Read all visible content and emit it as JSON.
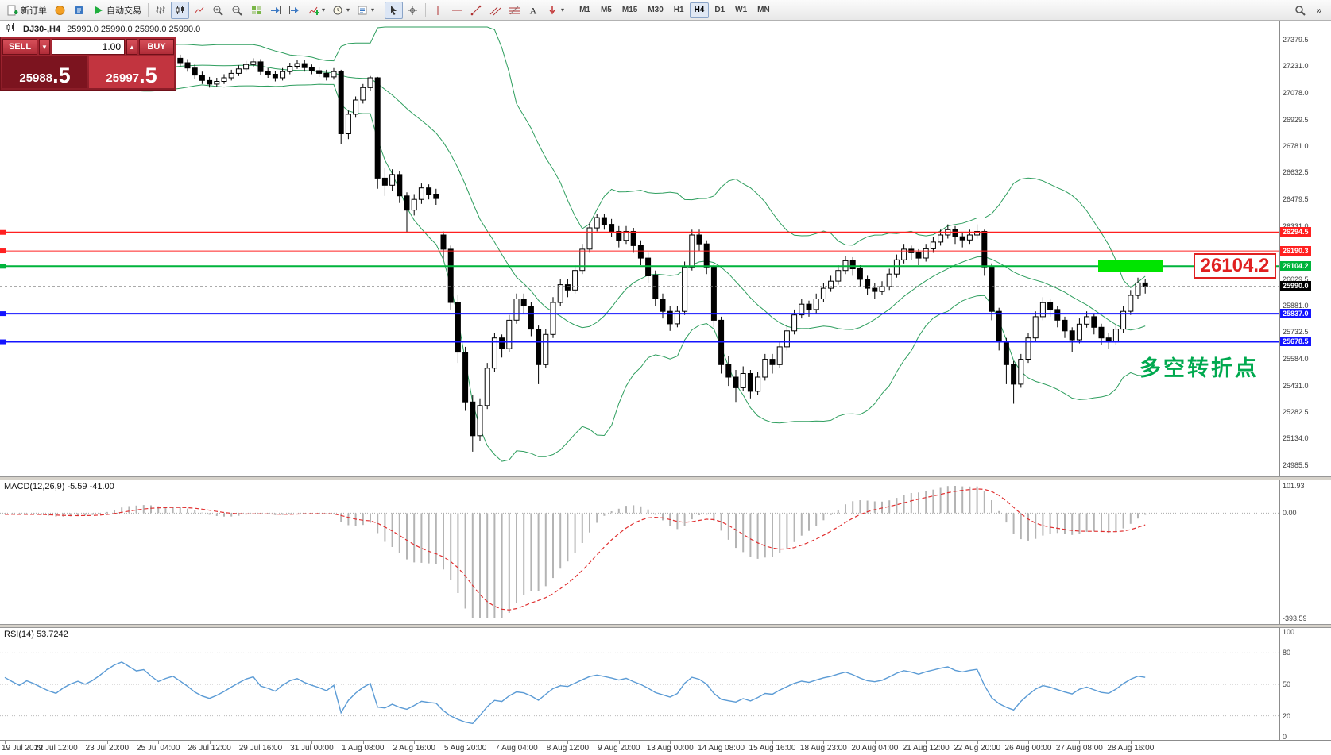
{
  "toolbar": {
    "new_order": "新订单",
    "auto_trading": "自动交易",
    "timeframes": [
      "M1",
      "M5",
      "M15",
      "M30",
      "H1",
      "H4",
      "D1",
      "W1",
      "MN"
    ],
    "active_timeframe": "H4"
  },
  "symbol_bar": {
    "title": "DJ30-,H4",
    "ohlc": "25990.0 25990.0 25990.0 25990.0"
  },
  "trade_panel": {
    "sell_label": "SELL",
    "buy_label": "BUY",
    "volume": "1.00",
    "sell_price": "25988.5",
    "sell_price_main": "25988",
    "sell_price_frac": ".5",
    "buy_price": "25997.5",
    "buy_price_main": "25997",
    "buy_price_frac": ".5"
  },
  "annotations": {
    "price_callout": "26104.2",
    "turning_point_note": "多空转折点"
  },
  "colors": {
    "bull": "#ffffff",
    "bear": "#000000",
    "bollinger": "#2e9e5e",
    "resistance": "#ff2020",
    "pivot_green": "#00b43c",
    "support": "#1414ff",
    "highlight_rect": "#00e400",
    "callout_red": "#e02020",
    "note_green": "#00a94f",
    "macd_hist": "#b4b4b4",
    "macd_signal": "#e03030",
    "rsi_line": "#5b9bd5",
    "current_price_tag": "#000000"
  },
  "indicators": {
    "macd": {
      "label": "MACD(12,26,9) -5.59 -41.00",
      "fast": 12,
      "slow": 26,
      "signal": 9,
      "axis_labels": [
        "101.93",
        "0.00",
        "-393.59"
      ],
      "axis_values": [
        101.93,
        0,
        -393.59
      ]
    },
    "rsi": {
      "label": "RSI(14) 53.7242",
      "period": 14,
      "axis_labels": [
        "100",
        "80",
        "50",
        "20",
        "0"
      ],
      "axis_values": [
        100,
        80,
        50,
        20,
        0
      ],
      "levels": [
        80,
        50,
        20
      ]
    }
  },
  "chart_data": {
    "type": "candlestick",
    "symbol": "DJ30-",
    "timeframe": "H4",
    "price_axis": {
      "range": [
        24930,
        27460
      ],
      "ticks": [
        27379.5,
        27231.0,
        27078.0,
        26929.5,
        26781.0,
        26632.5,
        26479.5,
        26331.0,
        26029.5,
        25881.0,
        25732.5,
        25584.0,
        25431.0,
        25282.5,
        25134.0,
        24985.5
      ]
    },
    "horizontal_lines": [
      {
        "price": 26294.5,
        "label": "26294.5",
        "color": "#ff2020",
        "width": 2,
        "type": "resistance"
      },
      {
        "price": 26190.3,
        "label": "26190.3",
        "color": "#ff2020",
        "width": 1,
        "type": "resistance"
      },
      {
        "price": 26104.2,
        "label": "26104.2",
        "color": "#00b43c",
        "width": 2,
        "type": "pivot"
      },
      {
        "price": 25837.0,
        "label": "25837.0",
        "color": "#1414ff",
        "width": 2,
        "type": "support"
      },
      {
        "price": 25678.5,
        "label": "25678.5",
        "color": "#1414ff",
        "width": 2,
        "type": "support"
      }
    ],
    "current_price": {
      "value": 25990.0,
      "label": "25990.0"
    },
    "bollinger": {
      "period": 20,
      "deviation": 2
    },
    "highlight_rect": {
      "price": 26104.2,
      "from_candle": 150,
      "to_candle": 158
    },
    "time_axis": {
      "labels": [
        "19 Jul 2019",
        "22 Jul 12:00",
        "23 Jul 20:00",
        "25 Jul 04:00",
        "26 Jul 12:00",
        "29 Jul 16:00",
        "31 Jul 00:00",
        "1 Aug 08:00",
        "2 Aug 16:00",
        "5 Aug 20:00",
        "7 Aug 04:00",
        "8 Aug 12:00",
        "9 Aug 20:00",
        "13 Aug 00:00",
        "14 Aug 08:00",
        "15 Aug 16:00",
        "18 Aug 23:00",
        "20 Aug 04:00",
        "21 Aug 12:00",
        "22 Aug 20:00",
        "26 Aug 00:00",
        "27 Aug 08:00",
        "28 Aug 16:00"
      ],
      "candle_indices": [
        0,
        7,
        14,
        21,
        28,
        35,
        42,
        49,
        56,
        63,
        70,
        77,
        84,
        91,
        98,
        105,
        112,
        119,
        126,
        133,
        140,
        147,
        154
      ]
    },
    "candles": [
      [
        27230,
        27250,
        27190,
        27210
      ],
      [
        27210,
        27230,
        27170,
        27190
      ],
      [
        27190,
        27210,
        27150,
        27170
      ],
      [
        27170,
        27215,
        27155,
        27195
      ],
      [
        27195,
        27210,
        27160,
        27180
      ],
      [
        27180,
        27200,
        27140,
        27160
      ],
      [
        27160,
        27180,
        27120,
        27140
      ],
      [
        27140,
        27160,
        27105,
        27125
      ],
      [
        27125,
        27170,
        27110,
        27150
      ],
      [
        27150,
        27190,
        27135,
        27170
      ],
      [
        27170,
        27205,
        27155,
        27185
      ],
      [
        27185,
        27205,
        27150,
        27170
      ],
      [
        27170,
        27210,
        27155,
        27190
      ],
      [
        27190,
        27240,
        27175,
        27220
      ],
      [
        27220,
        27280,
        27205,
        27260
      ],
      [
        27260,
        27320,
        27245,
        27300
      ],
      [
        27300,
        27355,
        27285,
        27330
      ],
      [
        27330,
        27360,
        27290,
        27310
      ],
      [
        27310,
        27330,
        27270,
        27290
      ],
      [
        27290,
        27320,
        27275,
        27300
      ],
      [
        27300,
        27320,
        27250,
        27270
      ],
      [
        27270,
        27290,
        27220,
        27240
      ],
      [
        27240,
        27280,
        27225,
        27260
      ],
      [
        27260,
        27295,
        27245,
        27275
      ],
      [
        27275,
        27295,
        27230,
        27250
      ],
      [
        27250,
        27270,
        27200,
        27220
      ],
      [
        27220,
        27240,
        27160,
        27180
      ],
      [
        27180,
        27200,
        27130,
        27150
      ],
      [
        27150,
        27170,
        27110,
        27130
      ],
      [
        27130,
        27165,
        27115,
        27145
      ],
      [
        27145,
        27185,
        27130,
        27165
      ],
      [
        27165,
        27210,
        27150,
        27190
      ],
      [
        27190,
        27235,
        27175,
        27215
      ],
      [
        27215,
        27260,
        27200,
        27240
      ],
      [
        27240,
        27275,
        27225,
        27255
      ],
      [
        27255,
        27270,
        27180,
        27200
      ],
      [
        27200,
        27220,
        27165,
        27185
      ],
      [
        27185,
        27205,
        27145,
        27165
      ],
      [
        27165,
        27220,
        27150,
        27200
      ],
      [
        27200,
        27250,
        27185,
        27230
      ],
      [
        27230,
        27265,
        27215,
        27245
      ],
      [
        27245,
        27265,
        27200,
        27222
      ],
      [
        27222,
        27240,
        27185,
        27205
      ],
      [
        27205,
        27225,
        27170,
        27190
      ],
      [
        27190,
        27210,
        27150,
        27170
      ],
      [
        27170,
        27220,
        27155,
        27200
      ],
      [
        27200,
        27210,
        26790,
        26850
      ],
      [
        26850,
        26980,
        26820,
        26960
      ],
      [
        26960,
        27060,
        26940,
        27040
      ],
      [
        27040,
        27130,
        27020,
        27110
      ],
      [
        27110,
        27175,
        27090,
        27165
      ],
      [
        27165,
        27170,
        26540,
        26600
      ],
      [
        26600,
        26660,
        26500,
        26560
      ],
      [
        26560,
        26650,
        26530,
        26620
      ],
      [
        26620,
        26640,
        26460,
        26500
      ],
      [
        26500,
        26520,
        26296,
        26420
      ],
      [
        26420,
        26510,
        26390,
        26480
      ],
      [
        26480,
        26570,
        26455,
        26545
      ],
      [
        26545,
        26565,
        26480,
        26510
      ],
      [
        26510,
        26540,
        26450,
        26485
      ],
      [
        26280,
        26300,
        26140,
        26200
      ],
      [
        26200,
        26220,
        25860,
        25900
      ],
      [
        25900,
        25940,
        25560,
        25620
      ],
      [
        25620,
        25650,
        25290,
        25340
      ],
      [
        25340,
        25380,
        25060,
        25150
      ],
      [
        25150,
        25360,
        25120,
        25320
      ],
      [
        25320,
        25560,
        25300,
        25530
      ],
      [
        25530,
        25730,
        25510,
        25700
      ],
      [
        25700,
        25720,
        25590,
        25640
      ],
      [
        25640,
        25830,
        25620,
        25800
      ],
      [
        25800,
        25950,
        25780,
        25920
      ],
      [
        25920,
        25950,
        25840,
        25880
      ],
      [
        25880,
        25900,
        25710,
        25750
      ],
      [
        25750,
        25770,
        25440,
        25550
      ],
      [
        25550,
        25750,
        25530,
        25720
      ],
      [
        25720,
        25930,
        25700,
        25900
      ],
      [
        25900,
        26030,
        25880,
        26000
      ],
      [
        26000,
        26030,
        25930,
        25970
      ],
      [
        25970,
        26110,
        25950,
        26080
      ],
      [
        26080,
        26230,
        26060,
        26200
      ],
      [
        26200,
        26350,
        26180,
        26320
      ],
      [
        26320,
        26400,
        26300,
        26378
      ],
      [
        26378,
        26400,
        26310,
        26340
      ],
      [
        26340,
        26370,
        26270,
        26300
      ],
      [
        26300,
        26330,
        26210,
        26250
      ],
      [
        26250,
        26330,
        26230,
        26300
      ],
      [
        26300,
        26320,
        26180,
        26220
      ],
      [
        26220,
        26250,
        26110,
        26150
      ],
      [
        26150,
        26180,
        26010,
        26050
      ],
      [
        26050,
        26080,
        25880,
        25920
      ],
      [
        25920,
        25950,
        25810,
        25850
      ],
      [
        25850,
        25880,
        25740,
        25780
      ],
      [
        25780,
        25880,
        25760,
        25850
      ],
      [
        25850,
        26130,
        25830,
        26100
      ],
      [
        26100,
        26310,
        26080,
        26280
      ],
      [
        26280,
        26310,
        26190,
        26230
      ],
      [
        26230,
        26250,
        26060,
        26100
      ],
      [
        26100,
        26120,
        25760,
        25800
      ],
      [
        25800,
        25820,
        25500,
        25550
      ],
      [
        25550,
        25600,
        25430,
        25480
      ],
      [
        25480,
        25520,
        25340,
        25420
      ],
      [
        25420,
        25540,
        25400,
        25500
      ],
      [
        25500,
        25520,
        25360,
        25400
      ],
      [
        25400,
        25510,
        25380,
        25480
      ],
      [
        25480,
        25610,
        25460,
        25580
      ],
      [
        25580,
        25610,
        25500,
        25550
      ],
      [
        25550,
        25680,
        25530,
        25650
      ],
      [
        25650,
        25770,
        25630,
        25740
      ],
      [
        25740,
        25860,
        25720,
        25830
      ],
      [
        25830,
        25920,
        25810,
        25890
      ],
      [
        25890,
        25910,
        25820,
        25860
      ],
      [
        25860,
        25950,
        25840,
        25920
      ],
      [
        25920,
        26010,
        25900,
        25980
      ],
      [
        25980,
        26050,
        25960,
        26020
      ],
      [
        26020,
        26110,
        26000,
        26080
      ],
      [
        26080,
        26160,
        26060,
        26135
      ],
      [
        26135,
        26155,
        26050,
        26090
      ],
      [
        26090,
        26110,
        25990,
        26030
      ],
      [
        26030,
        26050,
        25940,
        25980
      ],
      [
        25980,
        26010,
        25920,
        25962
      ],
      [
        25962,
        26020,
        25940,
        25990
      ],
      [
        25990,
        26090,
        25970,
        26060
      ],
      [
        26060,
        26170,
        26040,
        26140
      ],
      [
        26140,
        26230,
        26120,
        26200
      ],
      [
        26200,
        26220,
        26140,
        26180
      ],
      [
        26180,
        26200,
        26110,
        26150
      ],
      [
        26150,
        26230,
        26130,
        26202
      ],
      [
        26202,
        26270,
        26180,
        26240
      ],
      [
        26240,
        26310,
        26220,
        26280
      ],
      [
        26280,
        26340,
        26260,
        26310
      ],
      [
        26310,
        26330,
        26230,
        26270
      ],
      [
        26270,
        26290,
        26210,
        26252
      ],
      [
        26252,
        26310,
        26230,
        26280
      ],
      [
        26280,
        26340,
        26260,
        26300
      ],
      [
        26300,
        26310,
        26050,
        26100
      ],
      [
        26100,
        26120,
        25800,
        25850
      ],
      [
        25850,
        25870,
        25630,
        25680
      ],
      [
        25680,
        25700,
        25440,
        25550
      ],
      [
        25550,
        25570,
        25330,
        25440
      ],
      [
        25440,
        25610,
        25420,
        25580
      ],
      [
        25580,
        25730,
        25560,
        25700
      ],
      [
        25700,
        25850,
        25680,
        25820
      ],
      [
        25820,
        25930,
        25800,
        25899
      ],
      [
        25899,
        25920,
        25820,
        25860
      ],
      [
        25860,
        25880,
        25760,
        25800
      ],
      [
        25800,
        25820,
        25700,
        25740
      ],
      [
        25740,
        25760,
        25620,
        25690
      ],
      [
        25690,
        25810,
        25670,
        25778
      ],
      [
        25778,
        25850,
        25758,
        25820
      ],
      [
        25820,
        25840,
        25720,
        25760
      ],
      [
        25760,
        25780,
        25660,
        25700
      ],
      [
        25700,
        25730,
        25640,
        25680
      ],
      [
        25680,
        25780,
        25660,
        25750
      ],
      [
        25750,
        25880,
        25730,
        25850
      ],
      [
        25850,
        25970,
        25830,
        25940
      ],
      [
        25940,
        26040,
        25920,
        26010
      ],
      [
        26010,
        26030,
        25950,
        25990
      ]
    ]
  }
}
